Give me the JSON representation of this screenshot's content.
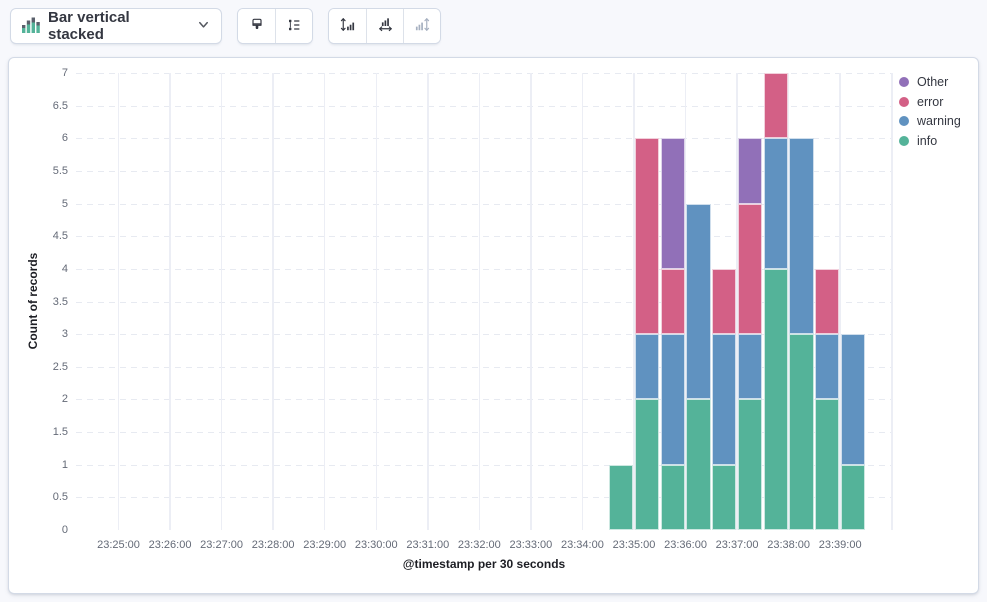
{
  "toolbar": {
    "chart_type_label": "Bar vertical stacked",
    "chart_type_icon": "bar-vertical-stacked-icon",
    "dropdown_icon": "chevron-down-icon",
    "style_group_icons": [
      "brush-icon",
      "legend-list-icon"
    ],
    "axis_group_icons": [
      {
        "icon": "left-axis-icon",
        "disabled": false
      },
      {
        "icon": "bottom-axis-icon",
        "disabled": false
      },
      {
        "icon": "right-axis-icon",
        "disabled": true
      }
    ]
  },
  "chart_data": {
    "type": "bar",
    "stacked": true,
    "orientation": "vertical",
    "xlabel": "@timestamp per 30 seconds",
    "ylabel": "Count of records",
    "ylim": [
      0,
      7
    ],
    "y_tick_step": 0.5,
    "grid": true,
    "x_ticks": [
      "23:25:00",
      "23:26:00",
      "23:27:00",
      "23:28:00",
      "23:29:00",
      "23:30:00",
      "23:31:00",
      "23:32:00",
      "23:33:00",
      "23:34:00",
      "23:35:00",
      "23:36:00",
      "23:37:00",
      "23:38:00",
      "23:39:00"
    ],
    "categories": [
      "23:34:30",
      "23:35:00",
      "23:35:30",
      "23:36:00",
      "23:36:30",
      "23:37:00",
      "23:37:30",
      "23:38:00",
      "23:38:30",
      "23:39:00"
    ],
    "series": [
      {
        "name": "info",
        "color": "#54B399",
        "values": [
          1,
          2,
          1,
          2,
          1,
          2,
          4,
          3,
          2,
          1
        ]
      },
      {
        "name": "warning",
        "color": "#6092C0",
        "values": [
          0,
          1,
          2,
          3,
          2,
          1,
          2,
          3,
          1,
          2
        ]
      },
      {
        "name": "error",
        "color": "#D36086",
        "values": [
          0,
          3,
          1,
          0,
          1,
          2,
          1,
          0,
          1,
          0
        ]
      },
      {
        "name": "Other",
        "color": "#9170B8",
        "values": [
          0,
          0,
          2,
          0,
          0,
          1,
          0,
          0,
          0,
          0
        ]
      }
    ],
    "totals": [
      1,
      6,
      6,
      5,
      4,
      6,
      7,
      6,
      4,
      3
    ],
    "legend": {
      "position": "right",
      "items": [
        "Other",
        "error",
        "warning",
        "info"
      ]
    }
  }
}
